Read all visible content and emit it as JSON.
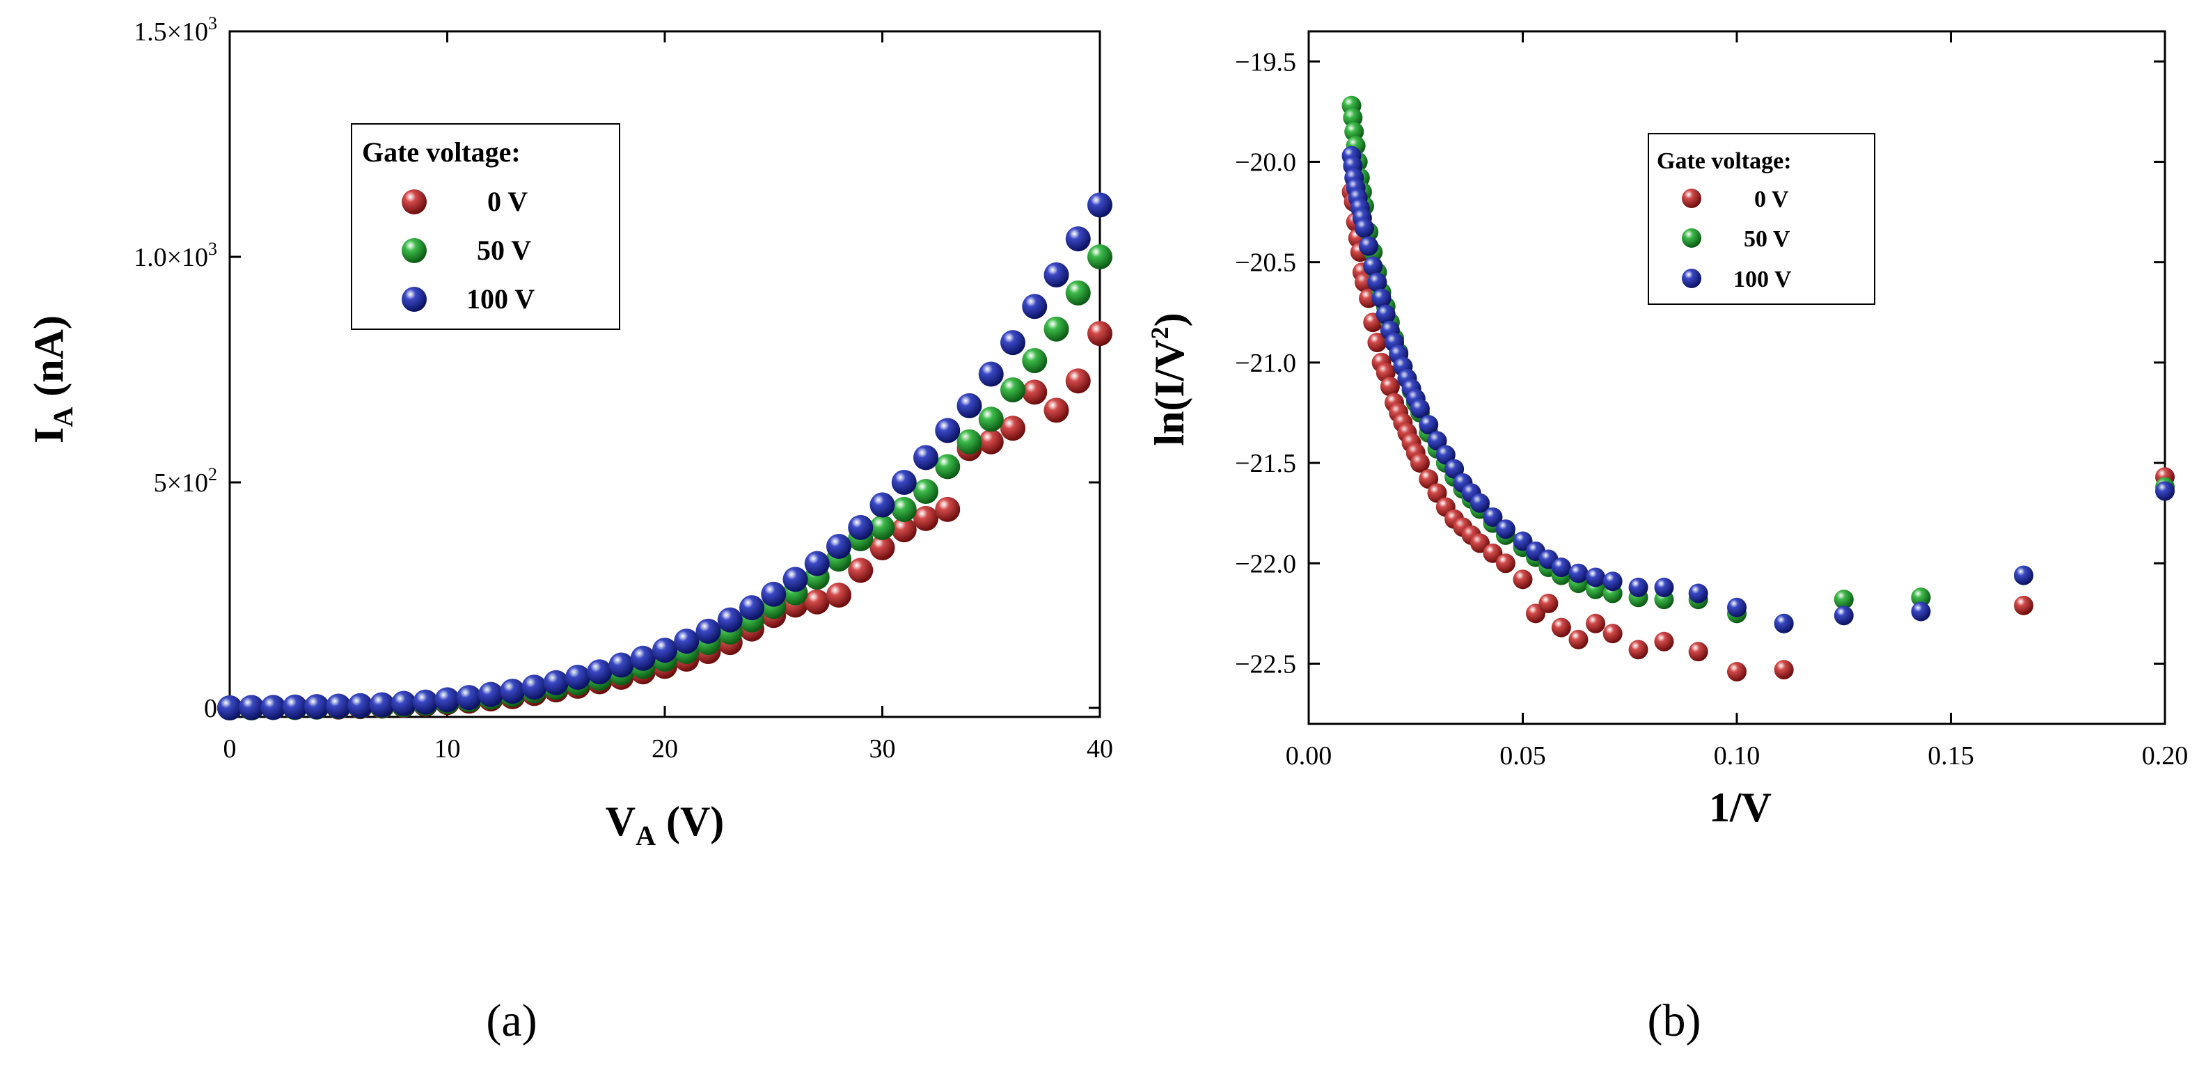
{
  "chart_data": [
    {
      "type": "scatter",
      "panel_caption": "(a)",
      "xlabel": "V",
      "xlabel_sub": "A",
      "xlabel_unit": " (V)",
      "ylabel": "I",
      "ylabel_sub": "A",
      "ylabel_unit": " (nA)",
      "xlim": [
        0,
        40
      ],
      "ylim": [
        -20,
        1500
      ],
      "x_ticks": [
        {
          "value": 0,
          "label": "0"
        },
        {
          "value": 10,
          "label": "10"
        },
        {
          "value": 20,
          "label": "20"
        },
        {
          "value": 30,
          "label": "30"
        },
        {
          "value": 40,
          "label": "40"
        }
      ],
      "y_ticks": [
        {
          "value": 0,
          "label": "0",
          "sup": ""
        },
        {
          "value": 500,
          "label": "5×10",
          "sup": "2"
        },
        {
          "value": 1000,
          "label": "1.0×10",
          "sup": "3"
        },
        {
          "value": 1500,
          "label": "1.5×10",
          "sup": "3"
        }
      ],
      "legend": {
        "title": "Gate voltage:",
        "entries": [
          "0 V",
          "50 V",
          "100 V"
        ]
      },
      "series": [
        {
          "name": "0 V",
          "color": "#b01c1c",
          "x": [
            0,
            1,
            2,
            3,
            4,
            5,
            6,
            7,
            8,
            9,
            10,
            11,
            12,
            13,
            14,
            15,
            16,
            17,
            18,
            19,
            20,
            21,
            22,
            23,
            24,
            25,
            26,
            27,
            28,
            29,
            30,
            31,
            32,
            33,
            34,
            35,
            36,
            37,
            38,
            39,
            40
          ],
          "y": [
            0,
            0,
            1,
            1,
            2,
            2,
            3,
            4,
            6,
            8,
            12,
            15,
            20,
            25,
            32,
            40,
            48,
            58,
            68,
            80,
            92,
            108,
            125,
            145,
            175,
            205,
            228,
            235,
            250,
            305,
            355,
            395,
            420,
            440,
            575,
            590,
            620,
            700,
            660,
            725,
            830
          ]
        },
        {
          "name": "50 V",
          "color": "#1f9b2c",
          "x": [
            0,
            1,
            2,
            3,
            4,
            5,
            6,
            7,
            8,
            9,
            10,
            11,
            12,
            13,
            14,
            15,
            16,
            17,
            18,
            19,
            20,
            21,
            22,
            23,
            24,
            25,
            26,
            27,
            28,
            29,
            30,
            31,
            32,
            33,
            34,
            35,
            36,
            37,
            38,
            39,
            40
          ],
          "y": [
            0,
            0,
            1,
            1,
            2,
            3,
            4,
            5,
            7,
            10,
            14,
            18,
            24,
            30,
            38,
            46,
            55,
            66,
            78,
            92,
            108,
            125,
            145,
            168,
            195,
            225,
            255,
            290,
            330,
            375,
            400,
            440,
            480,
            535,
            590,
            640,
            705,
            770,
            840,
            920,
            1000
          ]
        },
        {
          "name": "100 V",
          "color": "#1c2a9e",
          "x": [
            0,
            1,
            2,
            3,
            4,
            5,
            6,
            7,
            8,
            9,
            10,
            11,
            12,
            13,
            14,
            15,
            16,
            17,
            18,
            19,
            20,
            21,
            22,
            23,
            24,
            25,
            26,
            27,
            28,
            29,
            30,
            31,
            32,
            33,
            34,
            35,
            36,
            37,
            38,
            39,
            40
          ],
          "y": [
            0,
            1,
            1,
            2,
            3,
            4,
            5,
            7,
            10,
            13,
            18,
            23,
            30,
            37,
            46,
            56,
            68,
            80,
            95,
            110,
            128,
            148,
            170,
            195,
            222,
            252,
            285,
            320,
            358,
            400,
            450,
            500,
            555,
            615,
            670,
            740,
            810,
            890,
            960,
            1040,
            1115
          ]
        }
      ]
    },
    {
      "type": "scatter",
      "panel_caption": "(b)",
      "xlabel": "1/V",
      "ylabel": "ln(I/V",
      "ylabel_sup": "2",
      "ylabel_end": ")",
      "xlim": [
        0,
        0.2
      ],
      "ylim": [
        -22.8,
        -19.35
      ],
      "x_ticks": [
        {
          "value": 0,
          "label": "0.00"
        },
        {
          "value": 0.05,
          "label": "0.05"
        },
        {
          "value": 0.1,
          "label": "0.10"
        },
        {
          "value": 0.15,
          "label": "0.15"
        },
        {
          "value": 0.2,
          "label": "0.20"
        }
      ],
      "y_ticks": [
        {
          "value": -19.5,
          "label": "−19.5"
        },
        {
          "value": -20.0,
          "label": "−20.0"
        },
        {
          "value": -20.5,
          "label": "−20.5"
        },
        {
          "value": -21.0,
          "label": "−21.0"
        },
        {
          "value": -21.5,
          "label": "−21.5"
        },
        {
          "value": -22.0,
          "label": "−22.0"
        },
        {
          "value": -22.5,
          "label": "−22.5"
        }
      ],
      "legend": {
        "title": "Gate voltage:",
        "entries": [
          "0 V",
          "50 V",
          "100 V"
        ]
      },
      "series": [
        {
          "name": "0 V",
          "color": "#b01c1c",
          "x": [
            0.01,
            0.0105,
            0.011,
            0.0115,
            0.012,
            0.0125,
            0.013,
            0.014,
            0.015,
            0.016,
            0.017,
            0.018,
            0.019,
            0.02,
            0.021,
            0.022,
            0.023,
            0.024,
            0.025,
            0.026,
            0.028,
            0.03,
            0.032,
            0.034,
            0.036,
            0.038,
            0.04,
            0.043,
            0.046,
            0.05,
            0.053,
            0.056,
            0.059,
            0.063,
            0.067,
            0.071,
            0.077,
            0.083,
            0.091,
            0.1,
            0.111,
            0.125,
            0.143,
            0.167,
            0.2
          ],
          "y": [
            -20.15,
            -20.2,
            -20.3,
            -20.38,
            -20.45,
            -20.55,
            -20.6,
            -20.68,
            -20.8,
            -20.9,
            -21.0,
            -21.05,
            -21.12,
            -21.2,
            -21.25,
            -21.3,
            -21.35,
            -21.4,
            -21.45,
            -21.5,
            -21.58,
            -21.65,
            -21.72,
            -21.78,
            -21.82,
            -21.86,
            -21.9,
            -21.95,
            -22.0,
            -22.08,
            -22.25,
            -22.2,
            -22.32,
            -22.38,
            -22.3,
            -22.35,
            -22.43,
            -22.39,
            -22.44,
            -22.54,
            -22.53,
            -22.18,
            -22.17,
            -22.21,
            -21.57
          ]
        },
        {
          "name": "50 V",
          "color": "#1f9b2c",
          "x": [
            0.01,
            0.0103,
            0.0106,
            0.011,
            0.0115,
            0.012,
            0.0125,
            0.013,
            0.014,
            0.015,
            0.016,
            0.017,
            0.018,
            0.019,
            0.02,
            0.021,
            0.022,
            0.023,
            0.024,
            0.025,
            0.026,
            0.028,
            0.03,
            0.032,
            0.034,
            0.036,
            0.038,
            0.04,
            0.043,
            0.046,
            0.05,
            0.053,
            0.056,
            0.059,
            0.063,
            0.067,
            0.071,
            0.077,
            0.083,
            0.091,
            0.1,
            0.111,
            0.125,
            0.143,
            0.167,
            0.2
          ],
          "y": [
            -19.72,
            -19.78,
            -19.85,
            -19.92,
            -20.0,
            -20.08,
            -20.15,
            -20.22,
            -20.35,
            -20.45,
            -20.55,
            -20.65,
            -20.72,
            -20.8,
            -20.88,
            -20.95,
            -21.02,
            -21.08,
            -21.14,
            -21.2,
            -21.25,
            -21.35,
            -21.43,
            -21.5,
            -21.57,
            -21.63,
            -21.68,
            -21.73,
            -21.8,
            -21.86,
            -21.92,
            -21.97,
            -22.02,
            -22.06,
            -22.1,
            -22.13,
            -22.15,
            -22.17,
            -22.18,
            -22.18,
            -22.25,
            -22.3,
            -22.18,
            -22.17,
            -22.06,
            -21.62
          ]
        },
        {
          "name": "100 V",
          "color": "#1c2a9e",
          "x": [
            0.01,
            0.0103,
            0.0106,
            0.011,
            0.0115,
            0.012,
            0.0125,
            0.013,
            0.014,
            0.015,
            0.016,
            0.017,
            0.018,
            0.019,
            0.02,
            0.021,
            0.022,
            0.023,
            0.024,
            0.025,
            0.026,
            0.028,
            0.03,
            0.032,
            0.034,
            0.036,
            0.038,
            0.04,
            0.043,
            0.046,
            0.05,
            0.053,
            0.056,
            0.059,
            0.063,
            0.067,
            0.071,
            0.077,
            0.083,
            0.091,
            0.1,
            0.111,
            0.125,
            0.143,
            0.167,
            0.2
          ],
          "y": [
            -19.97,
            -20.02,
            -20.08,
            -20.13,
            -20.18,
            -20.23,
            -20.28,
            -20.33,
            -20.42,
            -20.52,
            -20.6,
            -20.68,
            -20.76,
            -20.84,
            -20.9,
            -20.96,
            -21.02,
            -21.08,
            -21.13,
            -21.18,
            -21.23,
            -21.31,
            -21.39,
            -21.46,
            -21.53,
            -21.6,
            -21.65,
            -21.7,
            -21.77,
            -21.83,
            -21.89,
            -21.94,
            -21.98,
            -22.02,
            -22.05,
            -22.07,
            -22.09,
            -22.12,
            -22.12,
            -22.15,
            -22.22,
            -22.3,
            -22.26,
            -22.24,
            -22.06,
            -21.64
          ]
        }
      ]
    }
  ]
}
